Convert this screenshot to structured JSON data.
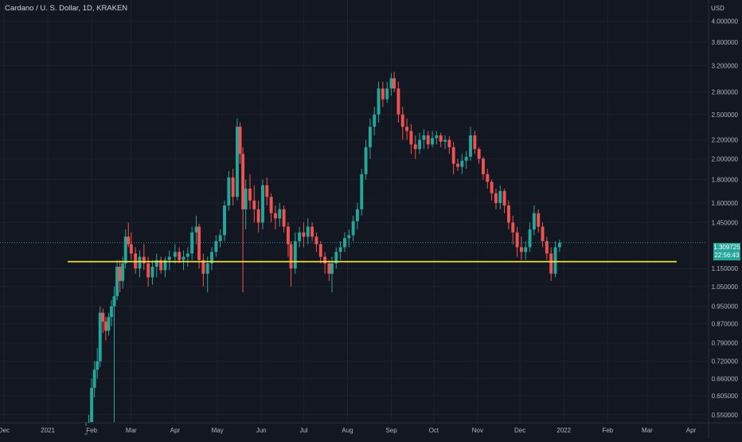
{
  "header": {
    "title": "Cardano / U. S. Dollar, 1D, KRAKEN",
    "currency": "USD"
  },
  "price_tag": {
    "price": "1.309725",
    "countdown": "22:56:43"
  },
  "colors": {
    "background": "#131722",
    "up": "#26a69a",
    "down": "#ef5350",
    "support_line": "#ffeb3b"
  },
  "chart_data": {
    "type": "candlestick",
    "scale": "log",
    "y_ticks": [
      0.55,
      0.605,
      0.66,
      0.72,
      0.79,
      0.87,
      0.95,
      1.05,
      1.15,
      1.45,
      1.6,
      1.8,
      2.0,
      2.2,
      2.5,
      2.8,
      3.2,
      3.6,
      4.0
    ],
    "y_tick_labels": [
      "0.550000",
      "0.605000",
      "0.660000",
      "0.720000",
      "0.790000",
      "0.870000",
      "0.950000",
      "1.050000",
      "1.150000",
      "1.450000",
      "1.600000",
      "1.800000",
      "2.000000",
      "2.200000",
      "2.500000",
      "2.800000",
      "3.200000",
      "3.600000",
      "4.000000"
    ],
    "x_tick_labels": [
      "Dec",
      "2021",
      "Feb",
      "Mar",
      "Apr",
      "May",
      "Jun",
      "Jul",
      "Aug",
      "Sep",
      "Oct",
      "Nov",
      "Dec",
      "2022",
      "Feb",
      "Mar",
      "Apr"
    ],
    "ylim": [
      0.53,
      4.4
    ],
    "support_level": 1.19,
    "ohlc": [
      [
        "2021-01-28",
        0.45,
        0.52,
        0.44,
        0.5
      ],
      [
        "2021-01-30",
        0.5,
        0.55,
        0.48,
        0.53
      ],
      [
        "2021-02-01",
        0.53,
        0.66,
        0.52,
        0.63
      ],
      [
        "2021-02-03",
        0.63,
        0.72,
        0.6,
        0.69
      ],
      [
        "2021-02-05",
        0.69,
        0.77,
        0.66,
        0.72
      ],
      [
        "2021-02-07",
        0.72,
        0.95,
        0.7,
        0.92
      ],
      [
        "2021-02-09",
        0.92,
        0.94,
        0.83,
        0.88
      ],
      [
        "2021-02-11",
        0.88,
        0.9,
        0.8,
        0.84
      ],
      [
        "2021-02-13",
        0.84,
        0.92,
        0.82,
        0.9
      ],
      [
        "2021-02-15",
        0.9,
        0.98,
        0.86,
        0.95
      ],
      [
        "2021-02-17",
        0.95,
        1.05,
        0.52,
        1.0
      ],
      [
        "2021-02-19",
        1.0,
        1.2,
        0.98,
        1.16
      ],
      [
        "2021-02-21",
        1.16,
        1.2,
        1.02,
        1.08
      ],
      [
        "2021-02-23",
        1.08,
        1.22,
        1.04,
        1.18
      ],
      [
        "2021-02-25",
        1.18,
        1.4,
        1.15,
        1.35
      ],
      [
        "2021-02-27",
        1.35,
        1.45,
        1.28,
        1.3
      ],
      [
        "2021-03-01",
        1.3,
        1.38,
        1.2,
        1.24
      ],
      [
        "2021-03-04",
        1.24,
        1.28,
        1.12,
        1.15
      ],
      [
        "2021-03-07",
        1.15,
        1.26,
        1.1,
        1.22
      ],
      [
        "2021-03-10",
        1.22,
        1.3,
        1.14,
        1.18
      ],
      [
        "2021-03-13",
        1.18,
        1.22,
        1.05,
        1.1
      ],
      [
        "2021-03-16",
        1.1,
        1.2,
        1.06,
        1.16
      ],
      [
        "2021-03-19",
        1.16,
        1.24,
        1.1,
        1.2
      ],
      [
        "2021-03-22",
        1.2,
        1.22,
        1.12,
        1.14
      ],
      [
        "2021-03-25",
        1.14,
        1.22,
        1.1,
        1.2
      ],
      [
        "2021-03-28",
        1.2,
        1.26,
        1.14,
        1.22
      ],
      [
        "2021-04-01",
        1.22,
        1.3,
        1.18,
        1.25
      ],
      [
        "2021-04-04",
        1.25,
        1.28,
        1.18,
        1.2
      ],
      [
        "2021-04-07",
        1.2,
        1.26,
        1.14,
        1.22
      ],
      [
        "2021-04-10",
        1.22,
        1.28,
        1.16,
        1.24
      ],
      [
        "2021-04-13",
        1.24,
        1.42,
        1.2,
        1.38
      ],
      [
        "2021-04-16",
        1.38,
        1.5,
        1.3,
        1.42
      ],
      [
        "2021-04-18",
        1.42,
        1.44,
        1.15,
        1.2
      ],
      [
        "2021-04-21",
        1.2,
        1.24,
        1.05,
        1.12
      ],
      [
        "2021-04-24",
        1.12,
        1.22,
        1.02,
        1.18
      ],
      [
        "2021-04-27",
        1.18,
        1.28,
        1.14,
        1.25
      ],
      [
        "2021-04-30",
        1.25,
        1.36,
        1.22,
        1.32
      ],
      [
        "2021-05-03",
        1.32,
        1.4,
        1.28,
        1.36
      ],
      [
        "2021-05-06",
        1.36,
        1.62,
        1.32,
        1.58
      ],
      [
        "2021-05-09",
        1.58,
        1.88,
        1.54,
        1.82
      ],
      [
        "2021-05-12",
        1.82,
        1.9,
        1.58,
        1.65
      ],
      [
        "2021-05-15",
        1.65,
        2.45,
        1.62,
        2.35
      ],
      [
        "2021-05-17",
        2.35,
        2.4,
        1.95,
        2.05
      ],
      [
        "2021-05-19",
        2.05,
        2.12,
        1.02,
        1.55
      ],
      [
        "2021-05-21",
        1.55,
        1.8,
        1.4,
        1.72
      ],
      [
        "2021-05-24",
        1.72,
        1.85,
        1.55,
        1.62
      ],
      [
        "2021-05-27",
        1.62,
        1.75,
        1.45,
        1.55
      ],
      [
        "2021-05-30",
        1.55,
        1.62,
        1.38,
        1.45
      ],
      [
        "2021-06-02",
        1.45,
        1.8,
        1.4,
        1.75
      ],
      [
        "2021-06-05",
        1.75,
        1.82,
        1.58,
        1.65
      ],
      [
        "2021-06-08",
        1.65,
        1.68,
        1.45,
        1.52
      ],
      [
        "2021-06-11",
        1.52,
        1.58,
        1.4,
        1.48
      ],
      [
        "2021-06-14",
        1.48,
        1.6,
        1.42,
        1.55
      ],
      [
        "2021-06-17",
        1.55,
        1.58,
        1.38,
        1.42
      ],
      [
        "2021-06-20",
        1.42,
        1.45,
        1.22,
        1.3
      ],
      [
        "2021-06-22",
        1.3,
        1.32,
        1.05,
        1.15
      ],
      [
        "2021-06-25",
        1.15,
        1.38,
        1.12,
        1.32
      ],
      [
        "2021-06-28",
        1.32,
        1.42,
        1.28,
        1.38
      ],
      [
        "2021-07-01",
        1.38,
        1.45,
        1.28,
        1.35
      ],
      [
        "2021-07-04",
        1.35,
        1.48,
        1.3,
        1.42
      ],
      [
        "2021-07-07",
        1.42,
        1.45,
        1.32,
        1.35
      ],
      [
        "2021-07-10",
        1.35,
        1.38,
        1.25,
        1.3
      ],
      [
        "2021-07-13",
        1.3,
        1.32,
        1.18,
        1.22
      ],
      [
        "2021-07-16",
        1.22,
        1.25,
        1.12,
        1.18
      ],
      [
        "2021-07-19",
        1.18,
        1.2,
        1.08,
        1.12
      ],
      [
        "2021-07-21",
        1.12,
        1.22,
        1.02,
        1.18
      ],
      [
        "2021-07-24",
        1.18,
        1.28,
        1.15,
        1.25
      ],
      [
        "2021-07-27",
        1.25,
        1.32,
        1.2,
        1.28
      ],
      [
        "2021-07-30",
        1.28,
        1.38,
        1.25,
        1.34
      ],
      [
        "2021-08-02",
        1.34,
        1.4,
        1.28,
        1.36
      ],
      [
        "2021-08-05",
        1.36,
        1.5,
        1.32,
        1.46
      ],
      [
        "2021-08-08",
        1.46,
        1.6,
        1.4,
        1.55
      ],
      [
        "2021-08-11",
        1.55,
        1.9,
        1.5,
        1.85
      ],
      [
        "2021-08-14",
        1.85,
        2.2,
        1.8,
        2.12
      ],
      [
        "2021-08-17",
        2.12,
        2.45,
        2.0,
        2.35
      ],
      [
        "2021-08-20",
        2.35,
        2.6,
        2.25,
        2.5
      ],
      [
        "2021-08-23",
        2.5,
        2.95,
        2.4,
        2.85
      ],
      [
        "2021-08-26",
        2.85,
        2.95,
        2.6,
        2.7
      ],
      [
        "2021-08-29",
        2.7,
        2.95,
        2.65,
        2.85
      ],
      [
        "2021-09-01",
        2.85,
        3.08,
        2.75,
        3.0
      ],
      [
        "2021-09-03",
        3.0,
        3.1,
        2.8,
        2.85
      ],
      [
        "2021-09-06",
        2.85,
        2.95,
        2.4,
        2.5
      ],
      [
        "2021-09-09",
        2.5,
        2.6,
        2.2,
        2.35
      ],
      [
        "2021-09-12",
        2.35,
        2.45,
        2.2,
        2.3
      ],
      [
        "2021-09-15",
        2.3,
        2.38,
        2.05,
        2.15
      ],
      [
        "2021-09-18",
        2.15,
        2.25,
        2.0,
        2.1
      ],
      [
        "2021-09-21",
        2.1,
        2.28,
        2.05,
        2.2
      ],
      [
        "2021-09-24",
        2.2,
        2.32,
        2.1,
        2.25
      ],
      [
        "2021-09-27",
        2.25,
        2.3,
        2.1,
        2.15
      ],
      [
        "2021-09-30",
        2.15,
        2.3,
        2.12,
        2.22
      ],
      [
        "2021-10-03",
        2.22,
        2.3,
        2.15,
        2.25
      ],
      [
        "2021-10-06",
        2.25,
        2.28,
        2.12,
        2.18
      ],
      [
        "2021-10-09",
        2.18,
        2.25,
        2.1,
        2.2
      ],
      [
        "2021-10-12",
        2.2,
        2.24,
        2.05,
        2.12
      ],
      [
        "2021-10-15",
        2.12,
        2.18,
        1.85,
        1.95
      ],
      [
        "2021-10-18",
        1.95,
        2.0,
        1.88,
        1.92
      ],
      [
        "2021-10-21",
        1.92,
        2.05,
        1.85,
        1.98
      ],
      [
        "2021-10-24",
        1.98,
        2.08,
        1.9,
        2.02
      ],
      [
        "2021-10-27",
        2.02,
        2.35,
        1.98,
        2.25
      ],
      [
        "2021-10-30",
        2.25,
        2.3,
        2.05,
        2.1
      ],
      [
        "2021-11-02",
        2.1,
        2.12,
        1.95,
        2.0
      ],
      [
        "2021-11-05",
        2.0,
        2.02,
        1.8,
        1.85
      ],
      [
        "2021-11-08",
        1.85,
        1.9,
        1.72,
        1.78
      ],
      [
        "2021-11-11",
        1.78,
        1.8,
        1.62,
        1.68
      ],
      [
        "2021-11-14",
        1.68,
        1.72,
        1.55,
        1.6
      ],
      [
        "2021-11-17",
        1.6,
        1.75,
        1.55,
        1.7
      ],
      [
        "2021-11-20",
        1.7,
        1.72,
        1.52,
        1.58
      ],
      [
        "2021-11-23",
        1.58,
        1.62,
        1.4,
        1.45
      ],
      [
        "2021-11-26",
        1.45,
        1.5,
        1.3,
        1.38
      ],
      [
        "2021-11-29",
        1.38,
        1.42,
        1.22,
        1.28
      ],
      [
        "2021-12-02",
        1.28,
        1.35,
        1.2,
        1.25
      ],
      [
        "2021-12-05",
        1.25,
        1.32,
        1.2,
        1.28
      ],
      [
        "2021-12-08",
        1.28,
        1.45,
        1.25,
        1.4
      ],
      [
        "2021-12-11",
        1.4,
        1.58,
        1.36,
        1.52
      ],
      [
        "2021-12-14",
        1.52,
        1.55,
        1.38,
        1.42
      ],
      [
        "2021-12-17",
        1.42,
        1.45,
        1.28,
        1.32
      ],
      [
        "2021-12-20",
        1.32,
        1.35,
        1.2,
        1.24
      ],
      [
        "2021-12-23",
        1.24,
        1.28,
        1.08,
        1.12
      ],
      [
        "2021-12-26",
        1.12,
        1.32,
        1.1,
        1.28
      ],
      [
        "2021-12-29",
        1.28,
        1.33,
        1.25,
        1.31
      ]
    ]
  }
}
